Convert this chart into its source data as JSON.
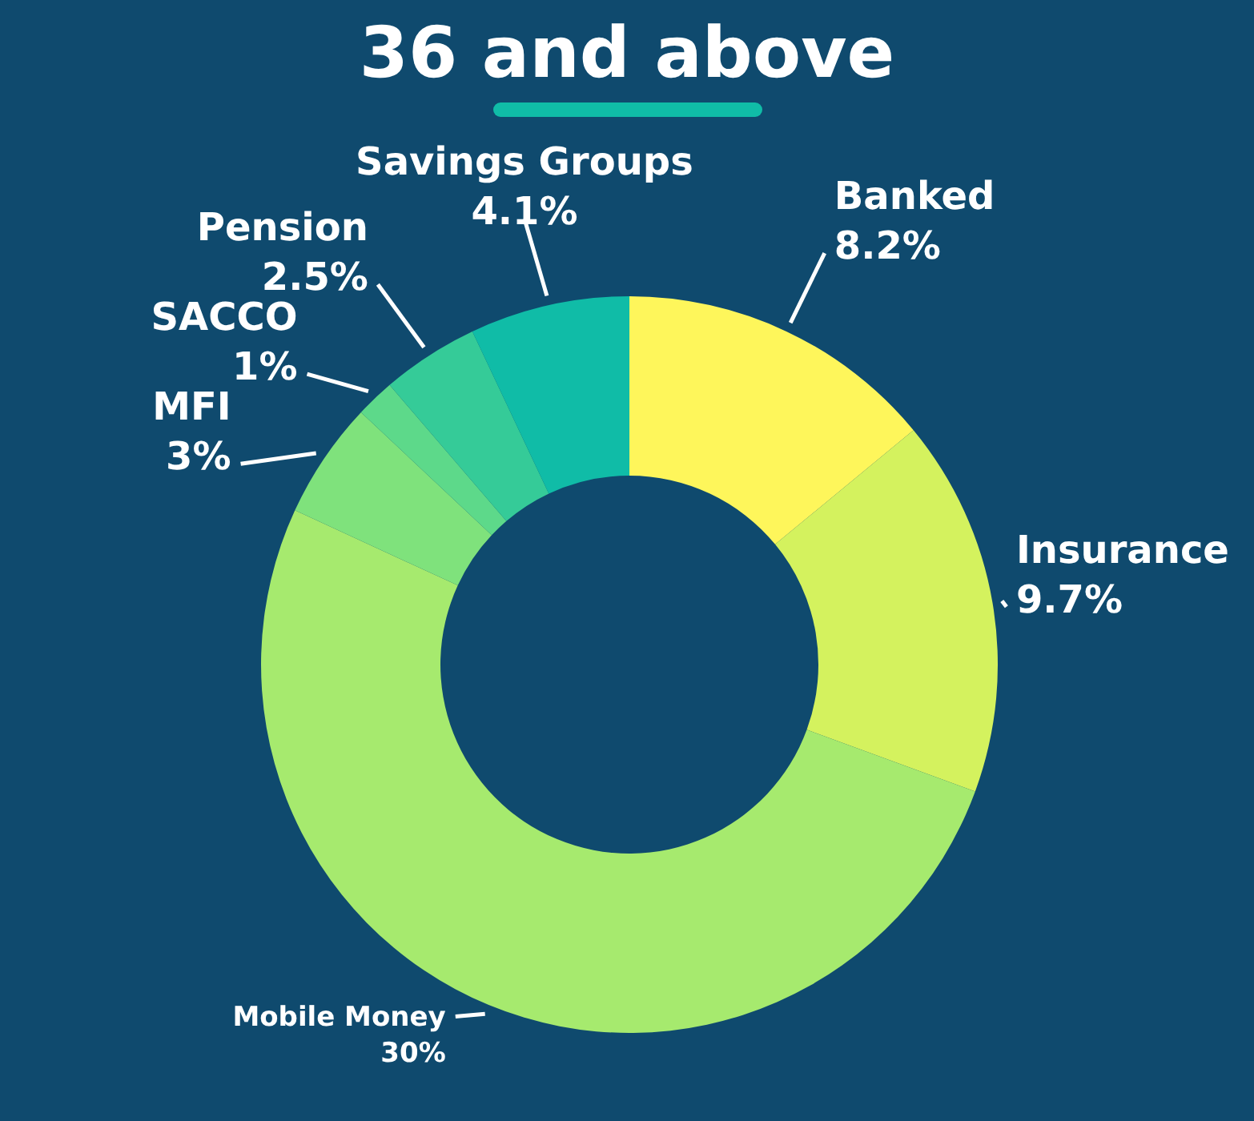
{
  "chart_data": {
    "type": "donut",
    "title": "36 and above",
    "categories": [
      "Banked",
      "Insurance",
      "Mobile Money",
      "MFI",
      "SACCO",
      "Pension",
      "Savings Groups"
    ],
    "values": [
      8.2,
      9.7,
      30,
      3,
      1,
      2.5,
      4.1
    ],
    "value_labels": [
      "8.2%",
      "9.7%",
      "30%",
      "3%",
      "1%",
      "2.5%",
      "4.1%"
    ],
    "colors": [
      "#fef65b",
      "#d4f25e",
      "#a6ea6e",
      "#7fe27c",
      "#5dd98a",
      "#35cb98",
      "#10bca7"
    ]
  }
}
